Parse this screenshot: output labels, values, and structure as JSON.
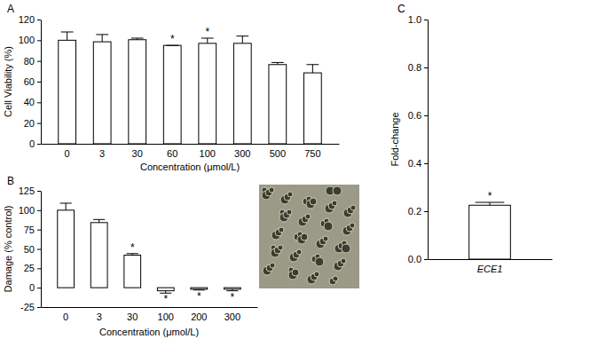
{
  "chart_data": [
    {
      "type": "bar",
      "title": "A",
      "categories": [
        "0",
        "3",
        "30",
        "60",
        "100",
        "300",
        "500",
        "750"
      ],
      "values": [
        100,
        98.5,
        100.5,
        95,
        97,
        97,
        76.5,
        68.5
      ],
      "errors": [
        8,
        7,
        1.5,
        0,
        5,
        7,
        2,
        8
      ],
      "annotations": [
        null,
        null,
        null,
        "*",
        "*",
        null,
        null,
        null
      ],
      "color": "#ffffff",
      "x_label": "Concentration (μmol/L)",
      "y_label": "Cell Viability (%)",
      "ylim": [
        0,
        120
      ],
      "yticks": [
        0,
        20,
        40,
        60,
        80,
        100,
        120
      ],
      "grid": false
    },
    {
      "type": "bar",
      "title": "B",
      "categories": [
        "0",
        "3",
        "30",
        "100",
        "200",
        "300"
      ],
      "values": [
        100,
        84,
        42,
        -4,
        -2,
        -2
      ],
      "errors": [
        9,
        4,
        2,
        3,
        1,
        2
      ],
      "annotations": [
        null,
        null,
        "*",
        "*",
        "*",
        "*"
      ],
      "color": "#ffffff",
      "x_label": "Concentration (μmol/L)",
      "y_label": "Damage (% control)",
      "ylim": [
        -25,
        125
      ],
      "yticks": [
        -25,
        0,
        25,
        50,
        75,
        100,
        125
      ],
      "grid": false
    },
    {
      "type": "bar",
      "title": "C",
      "categories": [
        "ECE1"
      ],
      "values": [
        0.225
      ],
      "errors": [
        0.012
      ],
      "annotations": [
        "*"
      ],
      "color": "#ffffff",
      "y_label": "Fold-change",
      "ylim": [
        0,
        1
      ],
      "yticks": [
        {
          "value": 0,
          "label": "0.0"
        },
        0.2,
        0.4,
        0.6,
        0.8,
        {
          "value": 1,
          "label": "1.0"
        }
      ],
      "grid": false
    }
  ]
}
